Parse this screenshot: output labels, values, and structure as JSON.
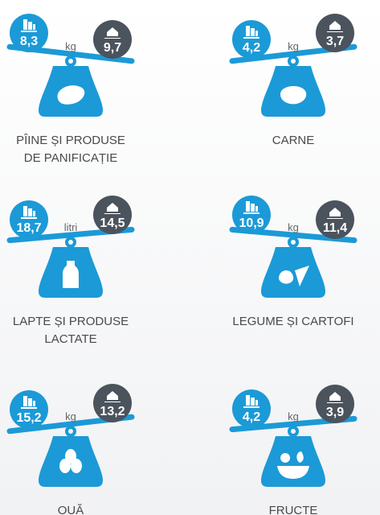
{
  "items": [
    {
      "urban": "8,3",
      "unit": "kg",
      "rural": "9,7",
      "label": [
        "PÎINE ȘI PRODUSE",
        "DE PANIFICAȚIE"
      ]
    },
    {
      "urban": "4,2",
      "unit": "kg",
      "rural": "3,7",
      "label": [
        "CARNE"
      ]
    },
    {
      "urban": "18,7",
      "unit": "litri",
      "rural": "14,5",
      "label": [
        "LAPTE ȘI PRODUSE",
        "LACTATE"
      ]
    },
    {
      "urban": "10,9",
      "unit": "kg",
      "rural": "11,4",
      "label": [
        "LEGUME ȘI CARTOFI"
      ]
    },
    {
      "urban": "15,2",
      "unit": "kg",
      "rural": "13,2",
      "label": [
        "OUĂ"
      ]
    },
    {
      "urban": "4,2",
      "unit": "kg",
      "rural": "3,9",
      "label": [
        "FRUCTE"
      ]
    }
  ]
}
